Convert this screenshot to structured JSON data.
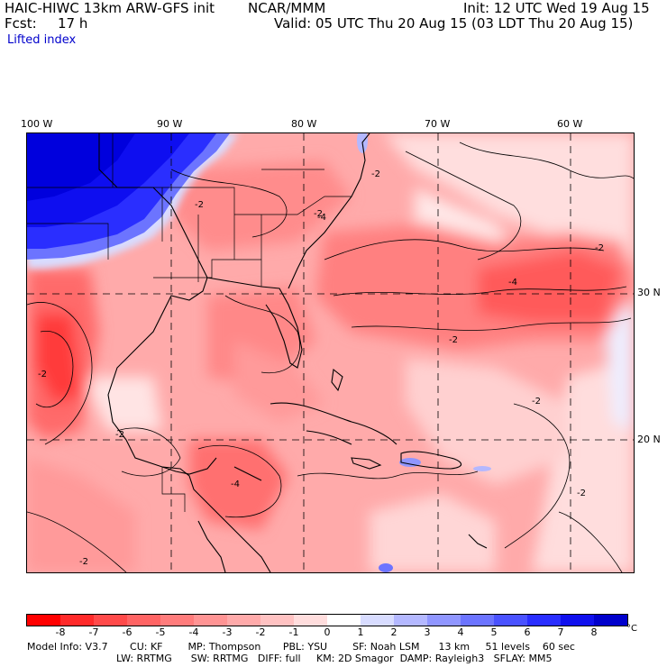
{
  "header": {
    "model": "HAIC-HIWC 13km ARW-GFS init",
    "org": "NCAR/MMM",
    "init": "Init: 12 UTC Wed 19 Aug 15",
    "fcst_label": "Fcst:",
    "fcst_value": "17 h",
    "valid": "Valid: 05 UTC Thu 20 Aug 15 (03 LDT Thu 20 Aug 15)",
    "field": "Lifted index"
  },
  "map": {
    "lon_labels": [
      "100 W",
      "90 W",
      "80 W",
      "70 W",
      "60 W"
    ],
    "lat_labels": [
      "30 N",
      "20 N"
    ],
    "contour_labels": [
      "-2",
      "-2",
      "-2",
      "-2",
      "-4",
      "-4",
      "-4",
      "-2",
      "-2",
      "-2",
      "-2",
      "-2",
      "-2"
    ]
  },
  "colorbar": {
    "unit": "°C",
    "ticks": [
      "-8",
      "-7",
      "-6",
      "-5",
      "-4",
      "-3",
      "-2",
      "-1",
      "0",
      "1",
      "2",
      "3",
      "4",
      "5",
      "6",
      "7",
      "8"
    ],
    "colors": [
      "#ff0000",
      "#ff2a2a",
      "#ff4a4a",
      "#ff6464",
      "#ff7c7c",
      "#ff9494",
      "#ffaaaa",
      "#ffc2c2",
      "#ffdddd",
      "#ffffff",
      "#d8dcff",
      "#b4b8ff",
      "#9096ff",
      "#6c74ff",
      "#4a52ff",
      "#2a2eff",
      "#1010ee",
      "#0000cc"
    ]
  },
  "model_info": {
    "line1": "Model Info: V3.7       CU: KF        MP: Thompson       PBL: YSU        SF: Noah LSM      13 km     51 levels    60 sec",
    "line2": "LW: RRTMG      SW: RRTMG   DIFF: full     KM: 2D Smagor  DAMP: Rayleigh3   SFLAY: MM5"
  }
}
